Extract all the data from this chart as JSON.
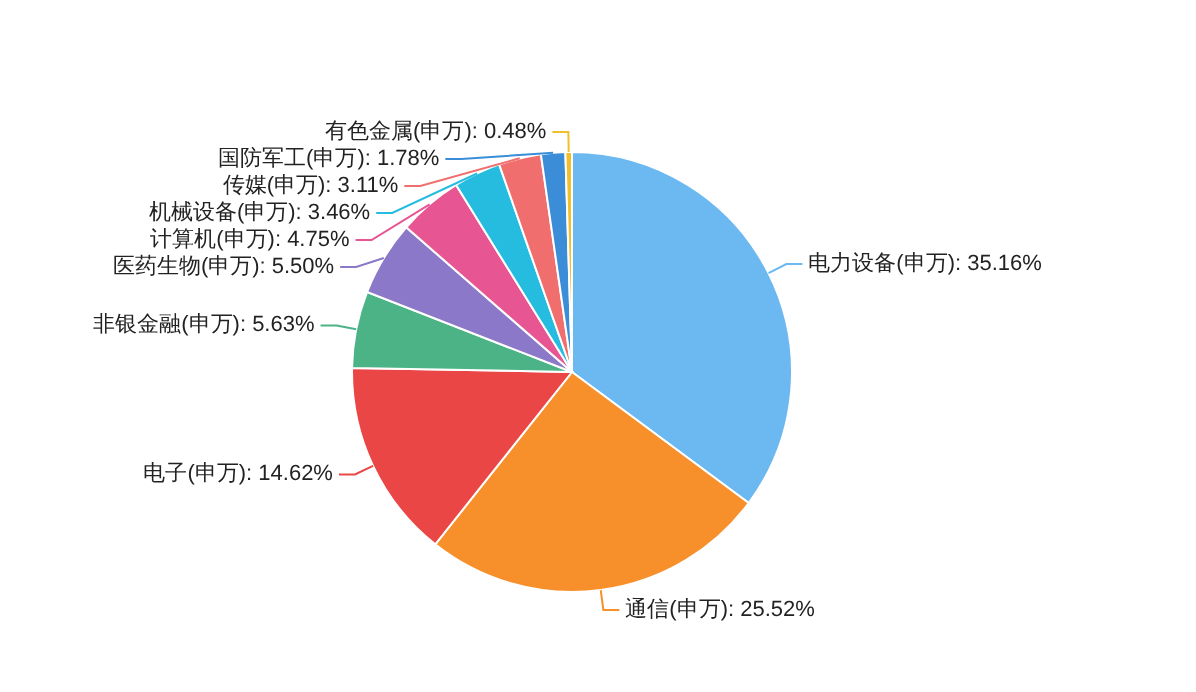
{
  "chart_data": {
    "type": "pie",
    "categories": [
      "电力设备(申万)",
      "通信(申万)",
      "电子(申万)",
      "非银金融(申万)",
      "医药生物(申万)",
      "计算机(申万)",
      "机械设备(申万)",
      "传媒(申万)",
      "国防军工(申万)",
      "有色金属(申万)"
    ],
    "values": [
      35.16,
      25.52,
      14.62,
      5.63,
      5.5,
      4.75,
      3.46,
      3.11,
      1.78,
      0.48
    ],
    "colors": [
      "#6cb8f0",
      "#f7902b",
      "#ea4646",
      "#4cb386",
      "#8b78c8",
      "#e85593",
      "#26bce0",
      "#f16e6e",
      "#3a8dd6",
      "#f0c02a"
    ],
    "value_labels": [
      ": 35.16%",
      ": 25.52%",
      ": 14.62%",
      ": 5.63%",
      ": 5.50%",
      ": 4.75%",
      ": 3.46%",
      ": 3.11%",
      ": 1.78%",
      ": 0.48%"
    ]
  }
}
